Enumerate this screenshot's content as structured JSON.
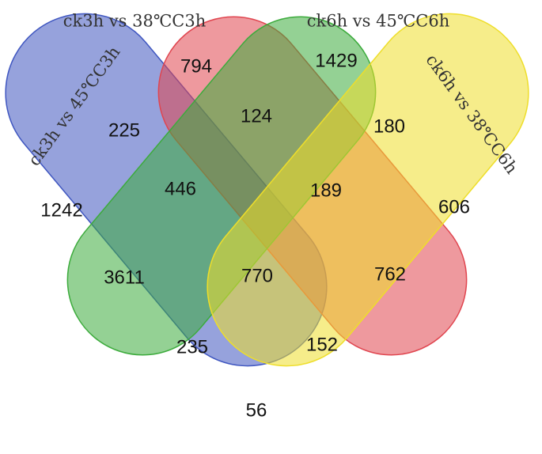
{
  "sets": [
    {
      "id": "A",
      "label": "ck3h  vs  45℃C3h",
      "color": "#3f56c0"
    },
    {
      "id": "B",
      "label": "ck3h  vs  38℃C3h",
      "color": "#e0454f"
    },
    {
      "id": "C",
      "label": "ck6h  vs  45℃C6h",
      "color": "#3cab3c"
    },
    {
      "id": "D",
      "label": "ck6h  vs  38℃C6h",
      "color": "#eede2a"
    }
  ],
  "regions": [
    {
      "sets": [
        "A"
      ],
      "count": "1242"
    },
    {
      "sets": [
        "B"
      ],
      "count": "794"
    },
    {
      "sets": [
        "C"
      ],
      "count": "1429"
    },
    {
      "sets": [
        "D"
      ],
      "count": "606"
    },
    {
      "sets": [
        "A",
        "B"
      ],
      "count": "225"
    },
    {
      "sets": [
        "B",
        "C"
      ],
      "count": "124"
    },
    {
      "sets": [
        "C",
        "D"
      ],
      "count": "180"
    },
    {
      "sets": [
        "A",
        "C"
      ],
      "count": "3611"
    },
    {
      "sets": [
        "B",
        "D"
      ],
      "count": "762"
    },
    {
      "sets": [
        "A",
        "D"
      ],
      "count": "56"
    },
    {
      "sets": [
        "A",
        "B",
        "C"
      ],
      "count": "446"
    },
    {
      "sets": [
        "B",
        "C",
        "D"
      ],
      "count": "189"
    },
    {
      "sets": [
        "A",
        "C",
        "D"
      ],
      "count": "235"
    },
    {
      "sets": [
        "A",
        "B",
        "D"
      ],
      "count": "152"
    },
    {
      "sets": [
        "A",
        "B",
        "C",
        "D"
      ],
      "count": "770"
    }
  ]
}
